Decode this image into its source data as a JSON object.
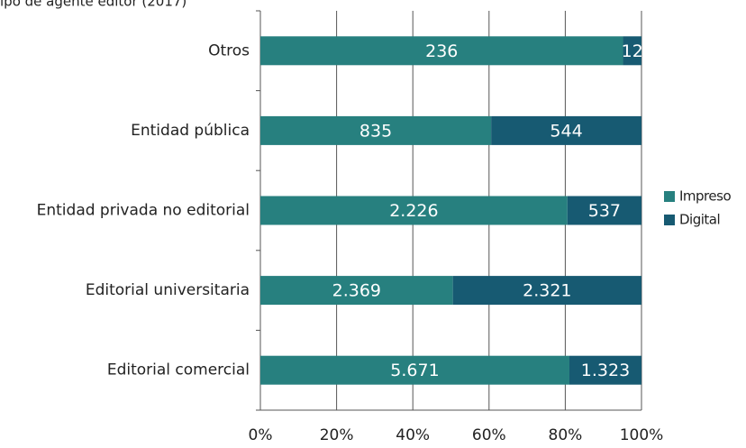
{
  "chart_data": {
    "type": "bar",
    "orientation": "horizontal",
    "stacked": "percent",
    "title": "ipo de agente editor (2017)",
    "categories": [
      "Otros",
      "Entidad pública",
      "Entidad privada no editorial",
      "Editorial universitaria",
      "Editorial comercial"
    ],
    "series": [
      {
        "name": "Impreso",
        "color": "#27807f",
        "values": [
          236,
          835,
          2226,
          2369,
          5671
        ],
        "value_labels": [
          "236",
          "835",
          "2.226",
          "2.369",
          "5.671"
        ]
      },
      {
        "name": "Digital",
        "color": "#175a72",
        "values": [
          12,
          544,
          537,
          2321,
          1323
        ],
        "value_labels": [
          "12",
          "544",
          "537",
          "2.321",
          "1.323"
        ]
      }
    ],
    "xlim": [
      0,
      100
    ],
    "xticks": [
      {
        "value": 0,
        "label": "0%"
      },
      {
        "value": 20,
        "label": "20%"
      },
      {
        "value": 40,
        "label": "40%"
      },
      {
        "value": 60,
        "label": "60%"
      },
      {
        "value": 80,
        "label": "80%"
      },
      {
        "value": 100,
        "label": "100%"
      }
    ],
    "grid": true,
    "legend": "right"
  }
}
